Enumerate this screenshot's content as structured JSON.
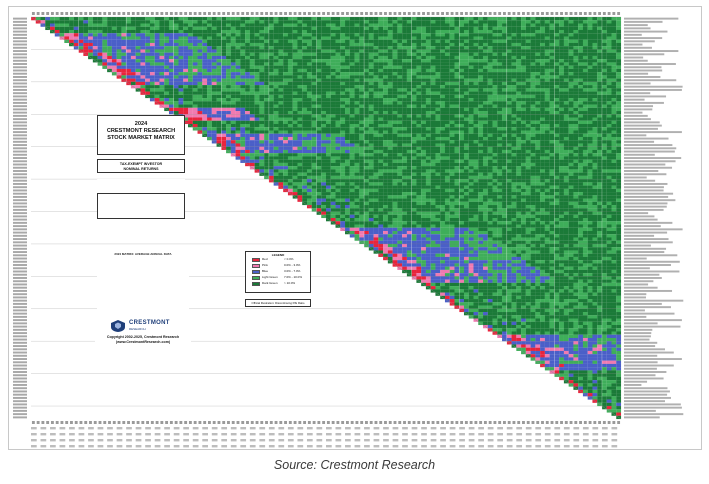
{
  "chart_data": {
    "type": "heatmap",
    "title_line1": "2024",
    "title_line2": "CRESTMONT RESEARCH",
    "title_line3": "STOCK MARKET MATRIX",
    "subtitle_line1": "TAX-EXEMPT INVESTOR",
    "subtitle_line2": "NOMINAL RETURNS",
    "legend_title": "LEGEND",
    "legend": [
      {
        "label": "Red",
        "range": "< 0.0%",
        "color": "#e8243c"
      },
      {
        "label": "Pink",
        "range": "0.0% - 3.0%",
        "color": "#f07ab0"
      },
      {
        "label": "Blue",
        "range": "3.0% - 7.0%",
        "color": "#4a5fc8"
      },
      {
        "label": "Light Green",
        "range": "7.0% - 10.0%",
        "color": "#3fae5a"
      },
      {
        "label": "Dark Green",
        "range": "> 10.0%",
        "color": "#1b7a38"
      }
    ],
    "official_note": "Official Illustration: Discontinuing P/E Ratio",
    "notes_title": "2024 MATRIX: AVERAGE ANNUAL DATA",
    "copyright_line1": "Copyright 2002-2025, Crestmont Research",
    "copyright_line2": "(www.CrestmontResearch.com)",
    "x_range": [
      1901,
      2024
    ],
    "y_range": [
      1900,
      2023
    ]
  },
  "logo": {
    "name": "CRESTMONT",
    "sub": "RESEARCH"
  },
  "source_caption": "Source: Crestmont Research"
}
